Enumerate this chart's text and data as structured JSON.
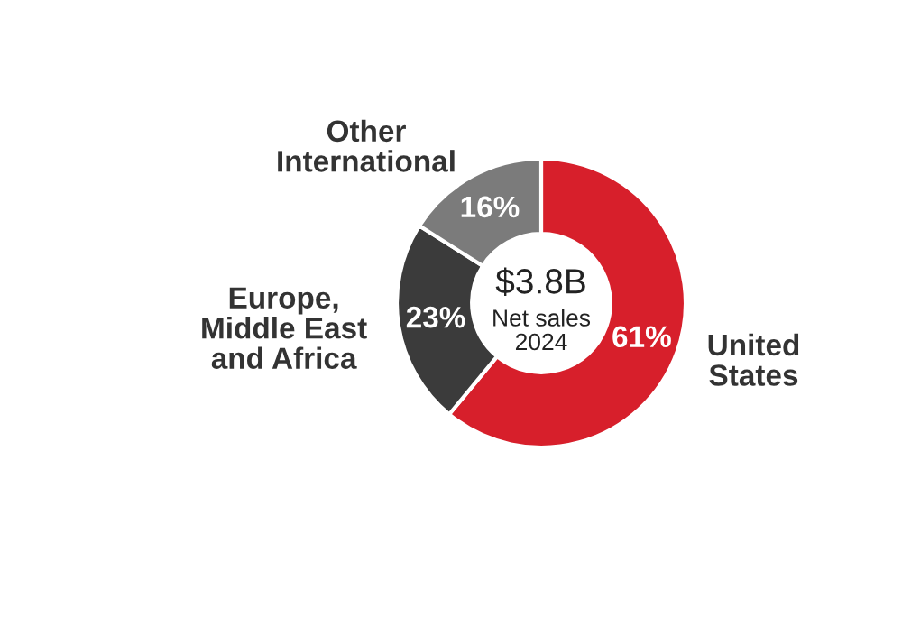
{
  "chart_data": {
    "type": "donut",
    "categories": [
      "United\nStates",
      "Europe,\nMiddle East\nand Africa",
      "Other\nInternational"
    ],
    "values": [
      61,
      23,
      16
    ],
    "colors": [
      "#d71f2b",
      "#3b3b3b",
      "#7b7b7b"
    ],
    "value_labels": [
      "61%",
      "23%",
      "16%"
    ],
    "annotations": [
      "$3.8B",
      "Net sales\n2024"
    ],
    "legend": false
  }
}
